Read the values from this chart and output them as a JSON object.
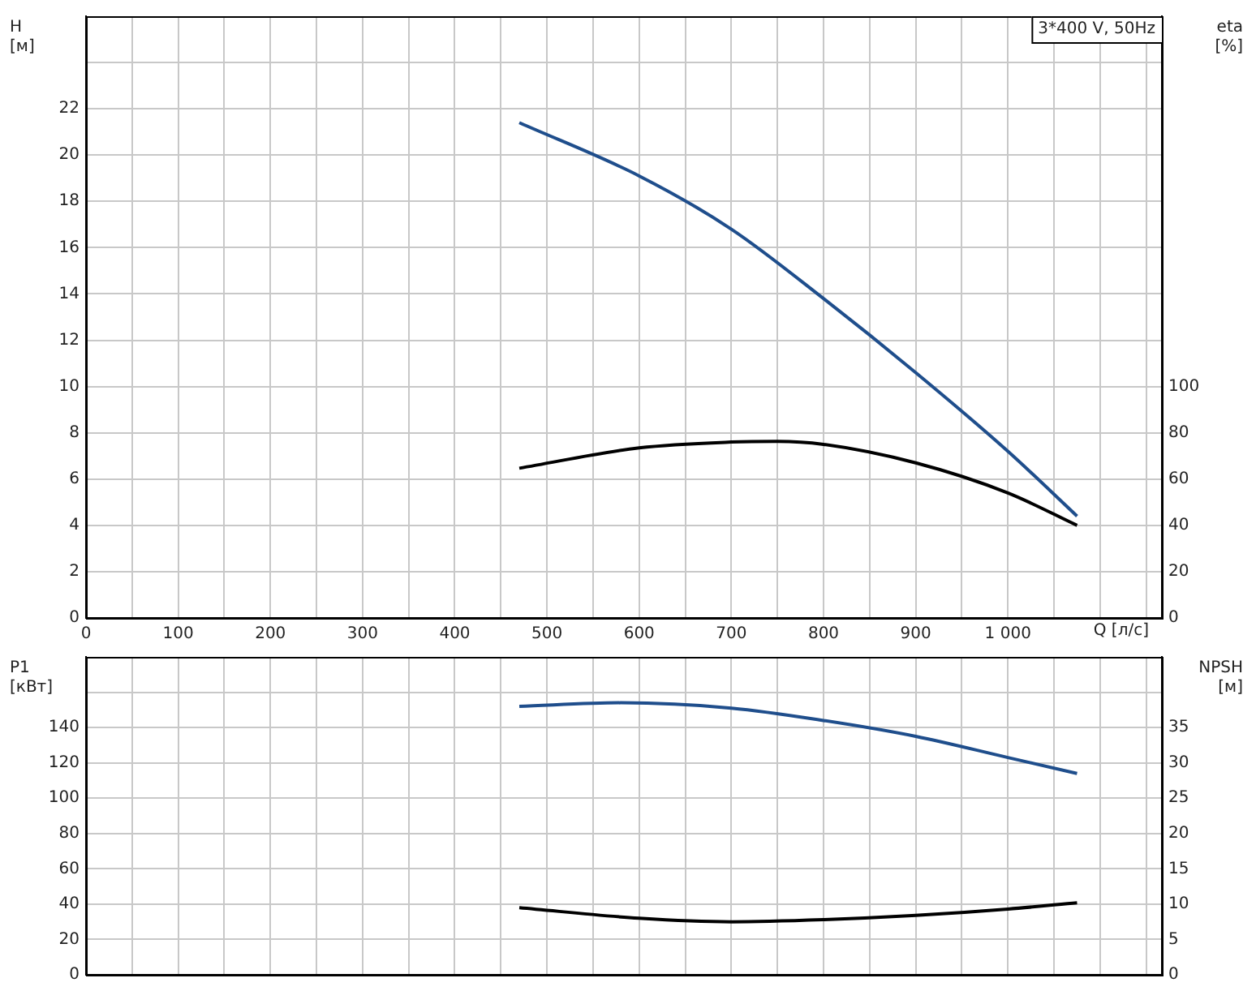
{
  "chart_data": [
    {
      "type": "line",
      "title": "3*400 V, 50Hz",
      "xlabel": "Q [л/с]",
      "ylabel": "H [м]",
      "y2label": "eta [%]",
      "xlim": [
        0,
        1167
      ],
      "xticks": [
        0,
        {
          "value": 50,
          "label": null
        },
        100,
        {
          "value": 150,
          "label": null
        },
        200,
        {
          "value": 250,
          "label": null
        },
        300,
        {
          "value": 350,
          "label": null
        },
        400,
        {
          "value": 450,
          "label": null
        },
        500,
        {
          "value": 550,
          "label": null
        },
        600,
        {
          "value": 650,
          "label": null
        },
        700,
        {
          "value": 750,
          "label": null
        },
        800,
        {
          "value": 850,
          "label": null
        },
        900,
        {
          "value": 950,
          "label": null
        },
        {
          "value": 1000,
          "label": "1 000"
        },
        {
          "value": 1050,
          "label": null
        },
        {
          "value": 1100,
          "label": null
        },
        {
          "value": 1150,
          "label": null
        }
      ],
      "ylim": [
        0,
        26
      ],
      "yticks": [
        0,
        2,
        4,
        6,
        8,
        10,
        12,
        14,
        16,
        18,
        20,
        22,
        {
          "value": 24,
          "label": null
        }
      ],
      "y2lim": [
        0,
        260
      ],
      "y2ticks": [
        0,
        20,
        40,
        60,
        80,
        100
      ],
      "grid": true,
      "legend": false,
      "marker": "none",
      "line_style": "solid",
      "series": [
        {
          "color": "#1f4e8c",
          "axis": "y",
          "x": [
            470,
            600,
            700,
            800,
            900,
            1000,
            1075
          ],
          "values": [
            21.4,
            19.1,
            16.8,
            13.8,
            10.6,
            7.2,
            4.4
          ]
        },
        {
          "color": "#000000",
          "axis": "y2",
          "x": [
            470,
            600,
            700,
            750,
            800,
            900,
            1000,
            1075
          ],
          "values": [
            64.7,
            73.5,
            76,
            76.3,
            75,
            67,
            54,
            40
          ]
        }
      ]
    },
    {
      "type": "line",
      "ylabel": "P1 [кВт]",
      "y2label": "NPSH [м]",
      "xlim": [
        0,
        1167
      ],
      "xticks": [
        0,
        {
          "value": 50,
          "label": null
        },
        {
          "value": 100,
          "label": null
        },
        {
          "value": 150,
          "label": null
        },
        {
          "value": 200,
          "label": null
        },
        {
          "value": 250,
          "label": null
        },
        {
          "value": 300,
          "label": null
        },
        {
          "value": 350,
          "label": null
        },
        {
          "value": 400,
          "label": null
        },
        {
          "value": 450,
          "label": null
        },
        {
          "value": 500,
          "label": null
        },
        {
          "value": 550,
          "label": null
        },
        {
          "value": 600,
          "label": null
        },
        {
          "value": 650,
          "label": null
        },
        {
          "value": 700,
          "label": null
        },
        {
          "value": 750,
          "label": null
        },
        {
          "value": 800,
          "label": null
        },
        {
          "value": 850,
          "label": null
        },
        {
          "value": 900,
          "label": null
        },
        {
          "value": 950,
          "label": null
        },
        {
          "value": 1000,
          "label": null
        },
        {
          "value": 1050,
          "label": null
        },
        {
          "value": 1100,
          "label": null
        },
        {
          "value": 1150,
          "label": null
        }
      ],
      "ylim": [
        0,
        180
      ],
      "yticks": [
        0,
        20,
        40,
        60,
        80,
        100,
        120,
        140,
        {
          "value": 160,
          "label": null
        }
      ],
      "y2lim": [
        0,
        45
      ],
      "y2ticks": [
        0,
        5,
        10,
        15,
        20,
        25,
        30,
        35
      ],
      "grid": true,
      "legend": false,
      "marker": "none",
      "line_style": "solid",
      "tick_labels": "y",
      "series": [
        {
          "color": "#1f4e8c",
          "axis": "y",
          "x": [
            470,
            580,
            700,
            800,
            900,
            1000,
            1075
          ],
          "values": [
            152,
            154,
            151,
            144,
            135,
            123,
            114
          ]
        },
        {
          "color": "#000000",
          "axis": "y2",
          "x": [
            470,
            600,
            700,
            800,
            900,
            1000,
            1075
          ],
          "values": [
            9.5,
            8,
            7.5,
            7.8,
            8.4,
            9.3,
            10.2
          ]
        }
      ]
    }
  ]
}
